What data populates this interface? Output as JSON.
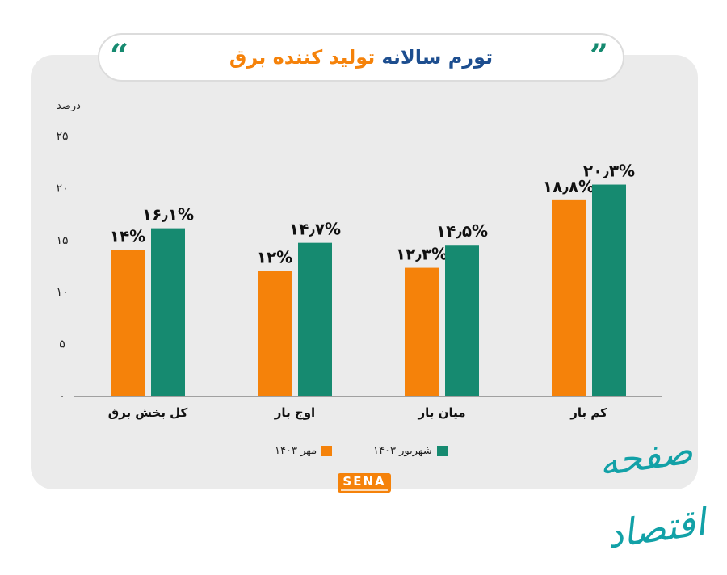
{
  "header": {
    "title_part1": "تورم سالانه",
    "title_part2": "تولید کننده برق"
  },
  "colors": {
    "orange": "#f5820a",
    "green": "#168a70",
    "title_blue": "#1d4e8f"
  },
  "chart_data": {
    "type": "bar",
    "ylabel": "درصد",
    "ylim": [
      0,
      25
    ],
    "yticks": [
      "۰",
      "۵",
      "۱۰",
      "۱۵",
      "۲۰",
      "۲۵"
    ],
    "ytick_values": [
      0,
      5,
      10,
      15,
      20,
      25
    ],
    "categories": [
      "کل بخش برق",
      "اوج بار",
      "میان بار",
      "کم بار"
    ],
    "series": [
      {
        "name": "مهر ۱۴۰۳",
        "color": "#f5820a",
        "values": [
          14,
          12,
          12.3,
          18.8
        ],
        "labels": [
          "۱۴%",
          "۱۲%",
          "۱۲٫۳%",
          "۱۸٫۸%"
        ]
      },
      {
        "name": "شهریور ۱۴۰۳",
        "color": "#168a70",
        "values": [
          16.1,
          14.7,
          14.5,
          20.3
        ],
        "labels": [
          "۱۶٫۱%",
          "۱۴٫۷%",
          "۱۴٫۵%",
          "۲۰٫۳%"
        ]
      }
    ],
    "grid": false,
    "legend_position": "bottom-center"
  },
  "branding": {
    "logo_text": "SENA",
    "watermark": "صفحه اقتصاد"
  }
}
